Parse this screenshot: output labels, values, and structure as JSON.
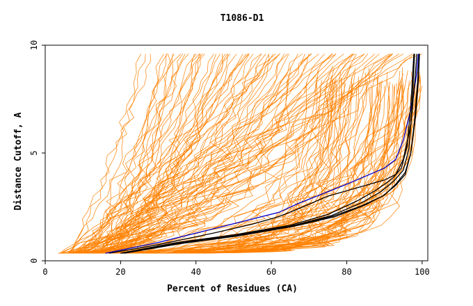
{
  "chart_data": {
    "type": "line",
    "title": "T1086-D1",
    "xlabel": "Percent of Residues (CA)",
    "ylabel": "Distance Cutoff, A",
    "xlim": [
      0,
      101.5
    ],
    "ylim": [
      0,
      10
    ],
    "xticks": [
      0,
      20,
      40,
      60,
      80,
      100
    ],
    "yticks": [
      0,
      5,
      10
    ],
    "grid": false,
    "colors": {
      "models": "#ff8000",
      "highlight": "#0000cc",
      "best": "#000000",
      "frame": "#000000"
    },
    "series": [
      {
        "role": "highlight",
        "color": "#0000cc",
        "x": [
          16,
          30,
          45,
          62,
          67,
          80,
          90,
          93,
          95,
          97,
          98.5,
          99
        ],
        "y": [
          0.35,
          0.85,
          1.5,
          2.25,
          2.65,
          3.55,
          4.3,
          4.7,
          5.6,
          7.0,
          8.6,
          9.6
        ]
      },
      {
        "role": "best",
        "color": "#000000",
        "x": [
          17,
          30,
          45,
          55,
          62,
          67,
          75,
          83,
          90,
          93,
          95,
          97,
          98,
          98.6
        ],
        "y": [
          0.35,
          0.75,
          1.3,
          1.7,
          2.05,
          2.4,
          3.0,
          3.4,
          3.75,
          4.0,
          4.7,
          6.3,
          8.2,
          9.6
        ]
      },
      {
        "role": "best",
        "color": "#000000",
        "x": [
          20,
          35,
          50,
          65,
          75,
          83,
          88,
          92,
          94.5,
          96,
          97,
          97.8
        ],
        "y": [
          0.35,
          0.85,
          1.2,
          1.65,
          2.15,
          2.8,
          3.3,
          3.8,
          4.3,
          5.3,
          7.2,
          9.6
        ]
      },
      {
        "role": "best",
        "color": "#000000",
        "x": [
          20,
          35,
          50,
          65,
          76,
          84,
          89,
          92.5,
          95,
          96.5,
          97.3,
          98
        ],
        "y": [
          0.35,
          0.8,
          1.15,
          1.6,
          2.1,
          2.7,
          3.2,
          3.7,
          4.2,
          5.2,
          7.1,
          9.6
        ]
      },
      {
        "role": "best",
        "color": "#000000",
        "x": [
          21,
          36,
          51,
          66,
          77,
          85,
          90,
          93,
          95.5,
          97,
          98,
          98.8,
          99.2
        ],
        "y": [
          0.35,
          0.8,
          1.15,
          1.6,
          2.05,
          2.6,
          3.05,
          3.55,
          4.1,
          5.0,
          6.5,
          8.3,
          9.6
        ]
      },
      {
        "role": "best",
        "color": "#000000",
        "x": [
          20.5,
          35,
          50,
          65,
          76,
          84,
          89.5,
          93,
          95.5,
          97,
          98.2,
          99,
          99.3
        ],
        "y": [
          0.35,
          0.8,
          1.2,
          1.6,
          2.05,
          2.55,
          3.0,
          3.5,
          4.0,
          5.0,
          6.6,
          8.4,
          9.6
        ]
      }
    ],
    "model_count": 160
  }
}
